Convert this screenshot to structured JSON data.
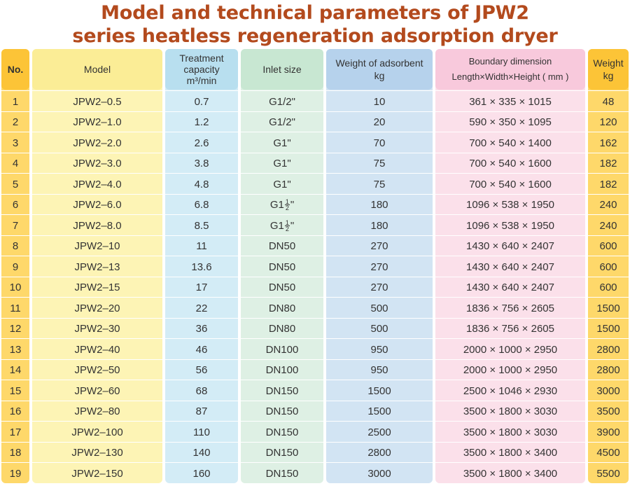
{
  "title_line1": "Model and technical parameters of JPW2",
  "title_line2": "series heatless regeneration adsorption dryer",
  "headers": {
    "no": "No.",
    "model": "Model",
    "capacity": "Treatment capacity",
    "capacity_unit": "m³/min",
    "inlet": "Inlet size",
    "adsorbent": "Weight of adsorbent",
    "adsorbent_unit": "kg",
    "dimension": "Boundary dimension",
    "dimension_sub": "Length×Width×Height ( mm )",
    "weight": "Weight",
    "weight_unit": "kg"
  },
  "rows": [
    {
      "no": "1",
      "model": "JPW2–0.5",
      "capacity": "0.7",
      "inlet": "G1/2\"",
      "adsorbent": "10",
      "dimension": "361 × 335 × 1015",
      "weight": "48"
    },
    {
      "no": "2",
      "model": "JPW2–1.0",
      "capacity": "1.2",
      "inlet": "G1/2\"",
      "adsorbent": "20",
      "dimension": "590 × 350 × 1095",
      "weight": "120"
    },
    {
      "no": "3",
      "model": "JPW2–2.0",
      "capacity": "2.6",
      "inlet": "G1\"",
      "adsorbent": "70",
      "dimension": "700 × 540 × 1400",
      "weight": "162"
    },
    {
      "no": "4",
      "model": "JPW2–3.0",
      "capacity": "3.8",
      "inlet": "G1\"",
      "adsorbent": "75",
      "dimension": "700 × 540 × 1600",
      "weight": "182"
    },
    {
      "no": "5",
      "model": "JPW2–4.0",
      "capacity": "4.8",
      "inlet": "G1\"",
      "adsorbent": "75",
      "dimension": "700 × 540 × 1600",
      "weight": "182"
    },
    {
      "no": "6",
      "model": "JPW2–6.0",
      "capacity": "6.8",
      "inlet": "G1 1/2\"",
      "adsorbent": "180",
      "dimension": "1096 × 538 × 1950",
      "weight": "240"
    },
    {
      "no": "7",
      "model": "JPW2–8.0",
      "capacity": "8.5",
      "inlet": "G1 1/2\"",
      "adsorbent": "180",
      "dimension": "1096 × 538 × 1950",
      "weight": "240"
    },
    {
      "no": "8",
      "model": "JPW2–10",
      "capacity": "11",
      "inlet": "DN50",
      "adsorbent": "270",
      "dimension": "1430 × 640 × 2407",
      "weight": "600"
    },
    {
      "no": "9",
      "model": "JPW2–13",
      "capacity": "13.6",
      "inlet": "DN50",
      "adsorbent": "270",
      "dimension": "1430 × 640 × 2407",
      "weight": "600"
    },
    {
      "no": "10",
      "model": "JPW2–15",
      "capacity": "17",
      "inlet": "DN50",
      "adsorbent": "270",
      "dimension": "1430 × 640 × 2407",
      "weight": "600"
    },
    {
      "no": "11",
      "model": "JPW2–20",
      "capacity": "22",
      "inlet": "DN80",
      "adsorbent": "500",
      "dimension": "1836 × 756 × 2605",
      "weight": "1500"
    },
    {
      "no": "12",
      "model": "JPW2–30",
      "capacity": "36",
      "inlet": "DN80",
      "adsorbent": "500",
      "dimension": "1836 × 756 × 2605",
      "weight": "1500"
    },
    {
      "no": "13",
      "model": "JPW2–40",
      "capacity": "46",
      "inlet": "DN100",
      "adsorbent": "950",
      "dimension": "2000 × 1000 × 2950",
      "weight": "2800"
    },
    {
      "no": "14",
      "model": "JPW2–50",
      "capacity": "56",
      "inlet": "DN100",
      "adsorbent": "950",
      "dimension": "2000 × 1000 × 2950",
      "weight": "2800"
    },
    {
      "no": "15",
      "model": "JPW2–60",
      "capacity": "68",
      "inlet": "DN150",
      "adsorbent": "1500",
      "dimension": "2500 × 1046 × 2930",
      "weight": "3000"
    },
    {
      "no": "16",
      "model": "JPW2–80",
      "capacity": "87",
      "inlet": "DN150",
      "adsorbent": "1500",
      "dimension": "3500 × 1800 × 3030",
      "weight": "3500"
    },
    {
      "no": "17",
      "model": "JPW2–100",
      "capacity": "110",
      "inlet": "DN150",
      "adsorbent": "2500",
      "dimension": "3500 × 1800 × 3030",
      "weight": "3900"
    },
    {
      "no": "18",
      "model": "JPW2–130",
      "capacity": "140",
      "inlet": "DN150",
      "adsorbent": "2800",
      "dimension": "3500 × 1800 × 3400",
      "weight": "4500"
    },
    {
      "no": "19",
      "model": "JPW2–150",
      "capacity": "160",
      "inlet": "DN150",
      "adsorbent": "3000",
      "dimension": "3500 × 1800 × 3400",
      "weight": "5500"
    }
  ]
}
